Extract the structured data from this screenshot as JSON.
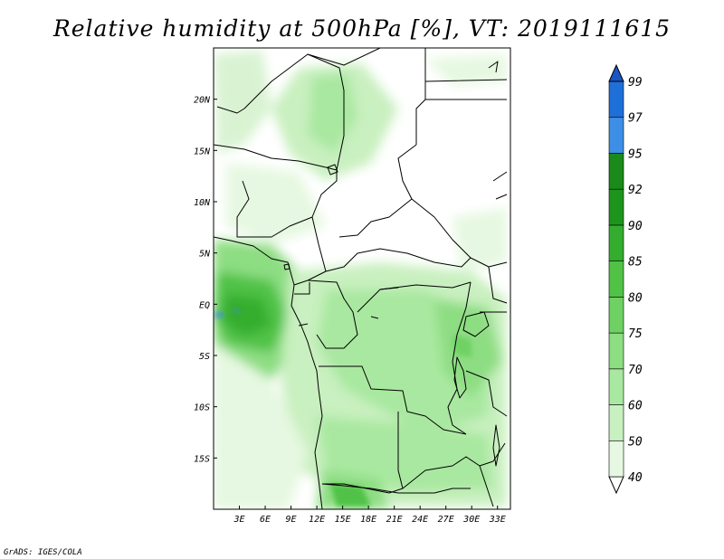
{
  "title": "Relative humidity at 500hPa [%], VT: 2019111615",
  "credit": "GrADS: IGES/COLA",
  "map": {
    "lon_range": [
      0,
      34.5
    ],
    "lat_range": [
      -20,
      25
    ],
    "x_ticks": [
      "3E",
      "6E",
      "9E",
      "12E",
      "15E",
      "18E",
      "21E",
      "24E",
      "27E",
      "30E",
      "33E"
    ],
    "y_ticks": [
      "20N",
      "15N",
      "10N",
      "5N",
      "EQ",
      "5S",
      "10S",
      "15S"
    ]
  },
  "colorbar": {
    "labels": [
      "40",
      "50",
      "60",
      "70",
      "75",
      "80",
      "85",
      "90",
      "92",
      "95",
      "97",
      "99"
    ],
    "colors": [
      "#ffffff",
      "#e6f8e1",
      "#c9f0c0",
      "#a9e8a0",
      "#8ddd82",
      "#6fd164",
      "#50c246",
      "#34ad2e",
      "#1f941d",
      "#1a8a1a",
      "#3d8fe6",
      "#1f6fd9",
      "#1a55c4"
    ]
  }
}
